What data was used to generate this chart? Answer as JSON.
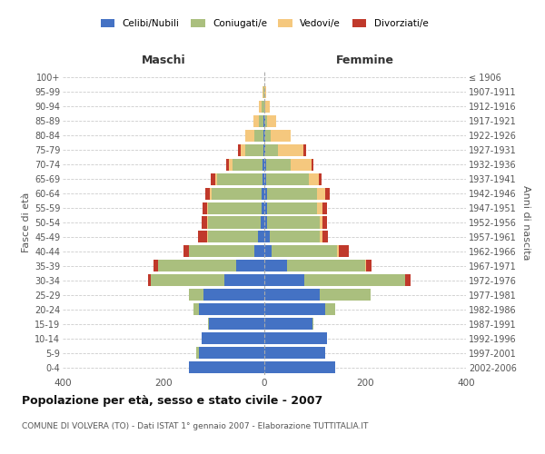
{
  "age_groups": [
    "0-4",
    "5-9",
    "10-14",
    "15-19",
    "20-24",
    "25-29",
    "30-34",
    "35-39",
    "40-44",
    "45-49",
    "50-54",
    "55-59",
    "60-64",
    "65-69",
    "70-74",
    "75-79",
    "80-84",
    "85-89",
    "90-94",
    "95-99",
    "100+"
  ],
  "birth_years": [
    "2002-2006",
    "1997-2001",
    "1992-1996",
    "1987-1991",
    "1982-1986",
    "1977-1981",
    "1972-1976",
    "1967-1971",
    "1962-1966",
    "1957-1961",
    "1952-1956",
    "1947-1951",
    "1942-1946",
    "1937-1941",
    "1932-1936",
    "1927-1931",
    "1922-1926",
    "1917-1921",
    "1912-1916",
    "1907-1911",
    "≤ 1906"
  ],
  "male": {
    "celibi": [
      150,
      130,
      125,
      110,
      130,
      120,
      80,
      55,
      20,
      12,
      7,
      6,
      5,
      4,
      3,
      2,
      2,
      1,
      0,
      0,
      0
    ],
    "coniugati": [
      0,
      5,
      0,
      1,
      10,
      30,
      145,
      155,
      130,
      100,
      105,
      105,
      100,
      90,
      60,
      35,
      18,
      10,
      5,
      2,
      0
    ],
    "vedovi": [
      0,
      0,
      0,
      0,
      0,
      0,
      0,
      0,
      0,
      2,
      2,
      3,
      3,
      4,
      8,
      10,
      18,
      10,
      5,
      2,
      0
    ],
    "divorziati": [
      0,
      0,
      0,
      0,
      0,
      0,
      5,
      10,
      10,
      18,
      10,
      8,
      10,
      8,
      4,
      5,
      0,
      0,
      0,
      0,
      0
    ]
  },
  "female": {
    "nubili": [
      140,
      120,
      125,
      95,
      120,
      110,
      80,
      45,
      15,
      10,
      5,
      5,
      5,
      4,
      3,
      2,
      2,
      1,
      0,
      0,
      0
    ],
    "coniugate": [
      0,
      0,
      0,
      2,
      20,
      100,
      200,
      155,
      130,
      100,
      105,
      100,
      100,
      85,
      50,
      25,
      10,
      5,
      2,
      0,
      0
    ],
    "vedove": [
      0,
      0,
      0,
      0,
      0,
      0,
      0,
      2,
      2,
      5,
      5,
      10,
      15,
      20,
      40,
      50,
      40,
      18,
      8,
      3,
      0
    ],
    "divorziate": [
      0,
      0,
      0,
      0,
      0,
      0,
      10,
      10,
      20,
      12,
      10,
      10,
      10,
      5,
      5,
      5,
      0,
      0,
      0,
      0,
      0
    ]
  },
  "colors": {
    "celibi_nubili": "#4472C4",
    "coniugati": "#AABF7E",
    "vedovi": "#F5C87E",
    "divorziati": "#C0392B"
  },
  "xlim": 400,
  "title": "Popolazione per età, sesso e stato civile - 2007",
  "subtitle": "COMUNE DI VOLVERA (TO) - Dati ISTAT 1° gennaio 2007 - Elaborazione TUTTITALIA.IT",
  "ylabel_left": "Fasce di età",
  "ylabel_right": "Anni di nascita",
  "xlabel_left": "Maschi",
  "xlabel_right": "Femmine",
  "background_color": "#ffffff",
  "grid_color": "#cccccc"
}
